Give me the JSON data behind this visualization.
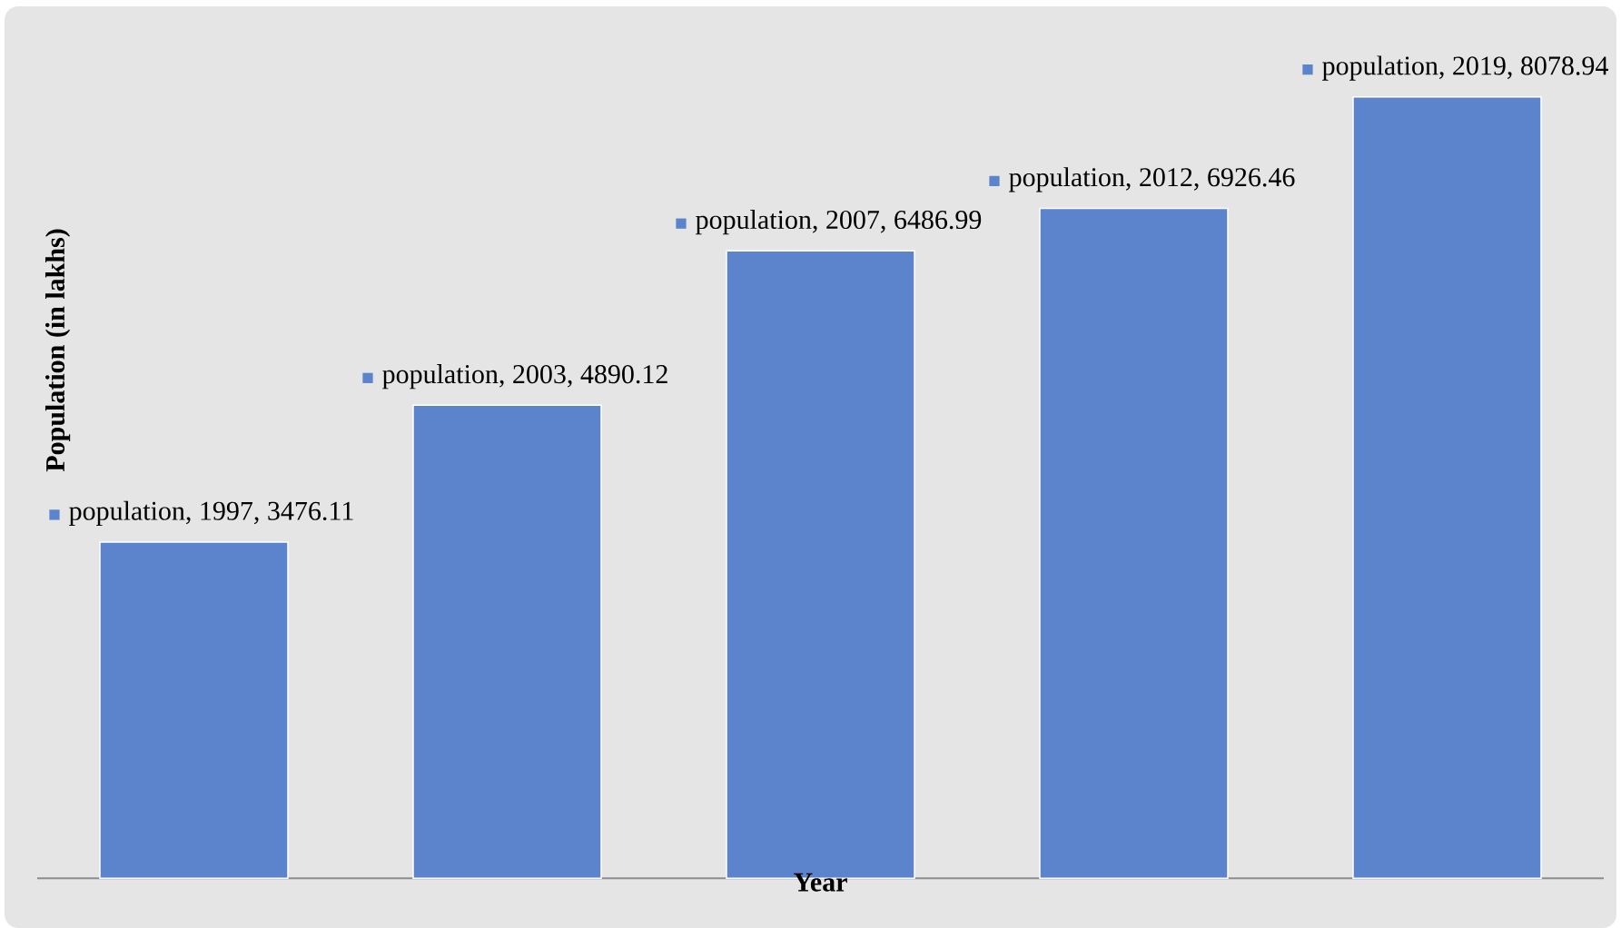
{
  "chart_data": {
    "type": "bar",
    "xlabel": "Year",
    "ylabel": "Population (in lakhs)",
    "categories": [
      null,
      null,
      null,
      null,
      null
    ],
    "series": [
      {
        "color": "#5b84cc",
        "values": [
          3476.11,
          4890.12,
          6486.99,
          6926.46,
          8078.94
        ],
        "value_labels": [
          "population, 1997, 3476.11",
          "population, 2003, 4890.12",
          "population, 2007, 6486.99",
          "population, 2012, 6926.46",
          "population, 2019, 8078.94"
        ]
      }
    ]
  }
}
